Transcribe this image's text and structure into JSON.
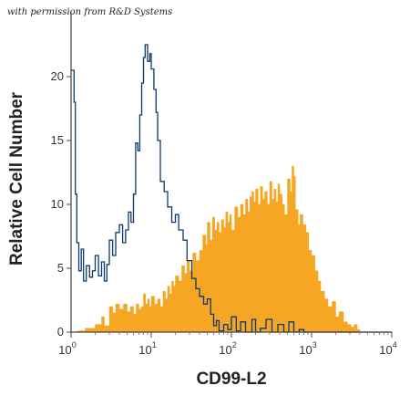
{
  "credit": "with permission from R&D Systems",
  "chart_data": {
    "type": "area",
    "xlabel": "CD99-L2",
    "ylabel": "Relative Cell Number",
    "x_scale": "log",
    "xlim": [
      1,
      10000
    ],
    "ylim": [
      0,
      25
    ],
    "x_ticks": [
      {
        "base": "10",
        "exp": "0",
        "value": 1
      },
      {
        "base": "10",
        "exp": "1",
        "value": 10
      },
      {
        "base": "10",
        "exp": "2",
        "value": 100
      },
      {
        "base": "10",
        "exp": "3",
        "value": 1000
      },
      {
        "base": "10",
        "exp": "4",
        "value": 10000
      }
    ],
    "y_ticks": [
      "0",
      "5",
      "10",
      "15",
      "20"
    ],
    "grid": false,
    "colors": {
      "isotype": "#0d3a6b",
      "stained": "#f6a623"
    },
    "series": [
      {
        "style": "outline",
        "color": "#0d3a6b",
        "points": [
          [
            1.0,
            20.5
          ],
          [
            1.09,
            18.0
          ],
          [
            1.13,
            10.8
          ],
          [
            1.18,
            7.0
          ],
          [
            1.25,
            4.8
          ],
          [
            1.34,
            6.5
          ],
          [
            1.43,
            4.0
          ],
          [
            1.55,
            5.2
          ],
          [
            1.7,
            4.3
          ],
          [
            1.85,
            4.8
          ],
          [
            2.0,
            6.0
          ],
          [
            2.2,
            4.4
          ],
          [
            2.4,
            5.5
          ],
          [
            2.6,
            4.0
          ],
          [
            2.8,
            5.3
          ],
          [
            3.0,
            7.2
          ],
          [
            3.3,
            6.0
          ],
          [
            3.6,
            7.8
          ],
          [
            4.0,
            8.4
          ],
          [
            4.4,
            7.0
          ],
          [
            4.8,
            8.0
          ],
          [
            5.2,
            9.4
          ],
          [
            5.6,
            8.6
          ],
          [
            6.0,
            10.8
          ],
          [
            6.4,
            14.8
          ],
          [
            6.8,
            14.2
          ],
          [
            7.2,
            17.0
          ],
          [
            7.6,
            19.5
          ],
          [
            8.0,
            21.5
          ],
          [
            8.4,
            22.5
          ],
          [
            9.0,
            21.2
          ],
          [
            9.6,
            21.8
          ],
          [
            10.0,
            20.6
          ],
          [
            10.8,
            19.0
          ],
          [
            11.5,
            17.2
          ],
          [
            12.0,
            15.0
          ],
          [
            13.0,
            11.8
          ],
          [
            14.5,
            11.0
          ],
          [
            16.0,
            9.8
          ],
          [
            18.0,
            8.6
          ],
          [
            20.0,
            9.2
          ],
          [
            22.0,
            8.0
          ],
          [
            25.0,
            7.2
          ],
          [
            28.0,
            5.6
          ],
          [
            32.0,
            4.2
          ],
          [
            36.0,
            3.4
          ],
          [
            40.0,
            2.8
          ],
          [
            45.0,
            2.2
          ],
          [
            50.0,
            2.6
          ],
          [
            55.0,
            1.4
          ],
          [
            60.0,
            0.5
          ],
          [
            65.0,
            0.9
          ],
          [
            70.0,
            0.1
          ],
          [
            80.0,
            0.6
          ],
          [
            90.0,
            0.2
          ],
          [
            100,
            1.2
          ],
          [
            115,
            0.1
          ],
          [
            130,
            0.8
          ],
          [
            150,
            0.0
          ],
          [
            180,
            1.0
          ],
          [
            200,
            0.0
          ],
          [
            230,
            0.3
          ],
          [
            270,
            1.0
          ],
          [
            320,
            0.0
          ],
          [
            380,
            0.6
          ],
          [
            450,
            0.0
          ],
          [
            520,
            0.8
          ],
          [
            600,
            0.0
          ],
          [
            700,
            0.2
          ],
          [
            800,
            0.0
          ],
          [
            10000,
            0.0
          ]
        ]
      },
      {
        "style": "filled",
        "color": "#f6a623",
        "points": [
          [
            1.0,
            0.0
          ],
          [
            1.2,
            0.1
          ],
          [
            1.5,
            0.3
          ],
          [
            2.0,
            0.6
          ],
          [
            2.4,
            1.2
          ],
          [
            2.6,
            0.5
          ],
          [
            3.0,
            2.0
          ],
          [
            3.3,
            1.5
          ],
          [
            3.6,
            2.2
          ],
          [
            4.0,
            1.8
          ],
          [
            4.5,
            2.2
          ],
          [
            5.0,
            1.6
          ],
          [
            5.5,
            2.0
          ],
          [
            6.0,
            1.4
          ],
          [
            6.5,
            2.2
          ],
          [
            7.0,
            1.8
          ],
          [
            7.5,
            2.0
          ],
          [
            8.0,
            3.0
          ],
          [
            8.5,
            2.2
          ],
          [
            9.0,
            2.6
          ],
          [
            9.5,
            2.0
          ],
          [
            10.0,
            2.8
          ],
          [
            11.0,
            2.2
          ],
          [
            12.0,
            2.6
          ],
          [
            13.0,
            2.0
          ],
          [
            14.0,
            3.2
          ],
          [
            15.0,
            2.6
          ],
          [
            16.0,
            3.6
          ],
          [
            17.0,
            3.0
          ],
          [
            18.0,
            4.0
          ],
          [
            19.0,
            3.6
          ],
          [
            20.0,
            4.4
          ],
          [
            22.0,
            4.0
          ],
          [
            24.0,
            5.2
          ],
          [
            26.0,
            4.6
          ],
          [
            28.0,
            5.6
          ],
          [
            30.0,
            4.8
          ],
          [
            33.0,
            6.2
          ],
          [
            36.0,
            5.6
          ],
          [
            40.0,
            6.4
          ],
          [
            44.0,
            7.6
          ],
          [
            48.0,
            6.8
          ],
          [
            50.0,
            8.6
          ],
          [
            54.0,
            7.2
          ],
          [
            58.0,
            9.0
          ],
          [
            62.0,
            8.0
          ],
          [
            66.0,
            8.6
          ],
          [
            70.0,
            7.8
          ],
          [
            75.0,
            8.8
          ],
          [
            80.0,
            8.2
          ],
          [
            85.0,
            9.4
          ],
          [
            90.0,
            8.6
          ],
          [
            95.0,
            9.2
          ],
          [
            100,
            8.0
          ],
          [
            110,
            9.8
          ],
          [
            120,
            9.0
          ],
          [
            130,
            10.0
          ],
          [
            140,
            9.2
          ],
          [
            150,
            10.4
          ],
          [
            160,
            9.4
          ],
          [
            170,
            10.6
          ],
          [
            180,
            11.0
          ],
          [
            190,
            10.2
          ],
          [
            200,
            11.2
          ],
          [
            215,
            10.0
          ],
          [
            230,
            11.4
          ],
          [
            245,
            10.4
          ],
          [
            260,
            11.0
          ],
          [
            280,
            10.0
          ],
          [
            300,
            11.8
          ],
          [
            320,
            10.4
          ],
          [
            340,
            11.2
          ],
          [
            360,
            10.2
          ],
          [
            380,
            11.6
          ],
          [
            400,
            10.8
          ],
          [
            430,
            10.0
          ],
          [
            460,
            9.2
          ],
          [
            500,
            12.0
          ],
          [
            540,
            11.0
          ],
          [
            570,
            13.0
          ],
          [
            600,
            12.2
          ],
          [
            630,
            9.6
          ],
          [
            680,
            8.4
          ],
          [
            720,
            9.2
          ],
          [
            780,
            8.4
          ],
          [
            850,
            7.8
          ],
          [
            920,
            6.4
          ],
          [
            1000,
            6.0
          ],
          [
            1100,
            4.8
          ],
          [
            1200,
            4.0
          ],
          [
            1300,
            3.2
          ],
          [
            1450,
            2.6
          ],
          [
            1600,
            2.0
          ],
          [
            1800,
            2.4
          ],
          [
            2000,
            1.2
          ],
          [
            2200,
            1.6
          ],
          [
            2500,
            0.8
          ],
          [
            2800,
            0.6
          ],
          [
            3100,
            0.4
          ],
          [
            3400,
            0.6
          ],
          [
            3700,
            0.2
          ],
          [
            4000,
            0.0
          ],
          [
            10000,
            0.0
          ]
        ]
      }
    ]
  }
}
